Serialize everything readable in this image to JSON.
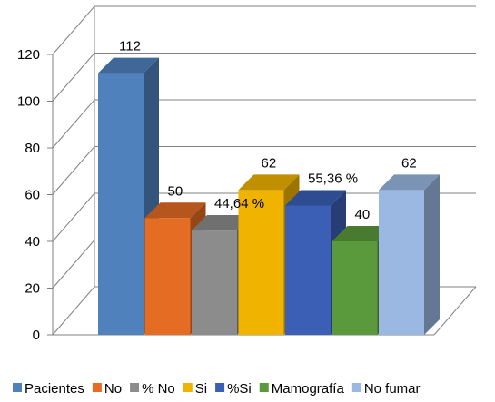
{
  "chart_data": {
    "type": "bar",
    "style": "3d-column",
    "title": "",
    "xlabel": "",
    "ylabel": "",
    "ylim": [
      0,
      120
    ],
    "yticks": [
      "0",
      "20",
      "40",
      "60",
      "80",
      "100",
      "120"
    ],
    "grid": true,
    "legend_position": "bottom",
    "series": [
      {
        "name": "Pacientes",
        "value": 112,
        "label": "112",
        "color": "#4f81bd"
      },
      {
        "name": "No",
        "value": 50,
        "label": "50",
        "color": "#e46c23"
      },
      {
        "name": "% No",
        "value": 44.64,
        "label": "44,64 %",
        "color": "#8c8c8c"
      },
      {
        "name": "Si",
        "value": 62,
        "label": "62",
        "color": "#f0b400"
      },
      {
        "name": "%Si",
        "value": 55.36,
        "label": "55,36 %",
        "color": "#3a5fb4"
      },
      {
        "name": "Mamografía",
        "value": 40,
        "label": "40",
        "color": "#5a9a3c"
      },
      {
        "name": "No fumar",
        "value": 62,
        "label": "62",
        "color": "#9ab8e2"
      }
    ]
  }
}
